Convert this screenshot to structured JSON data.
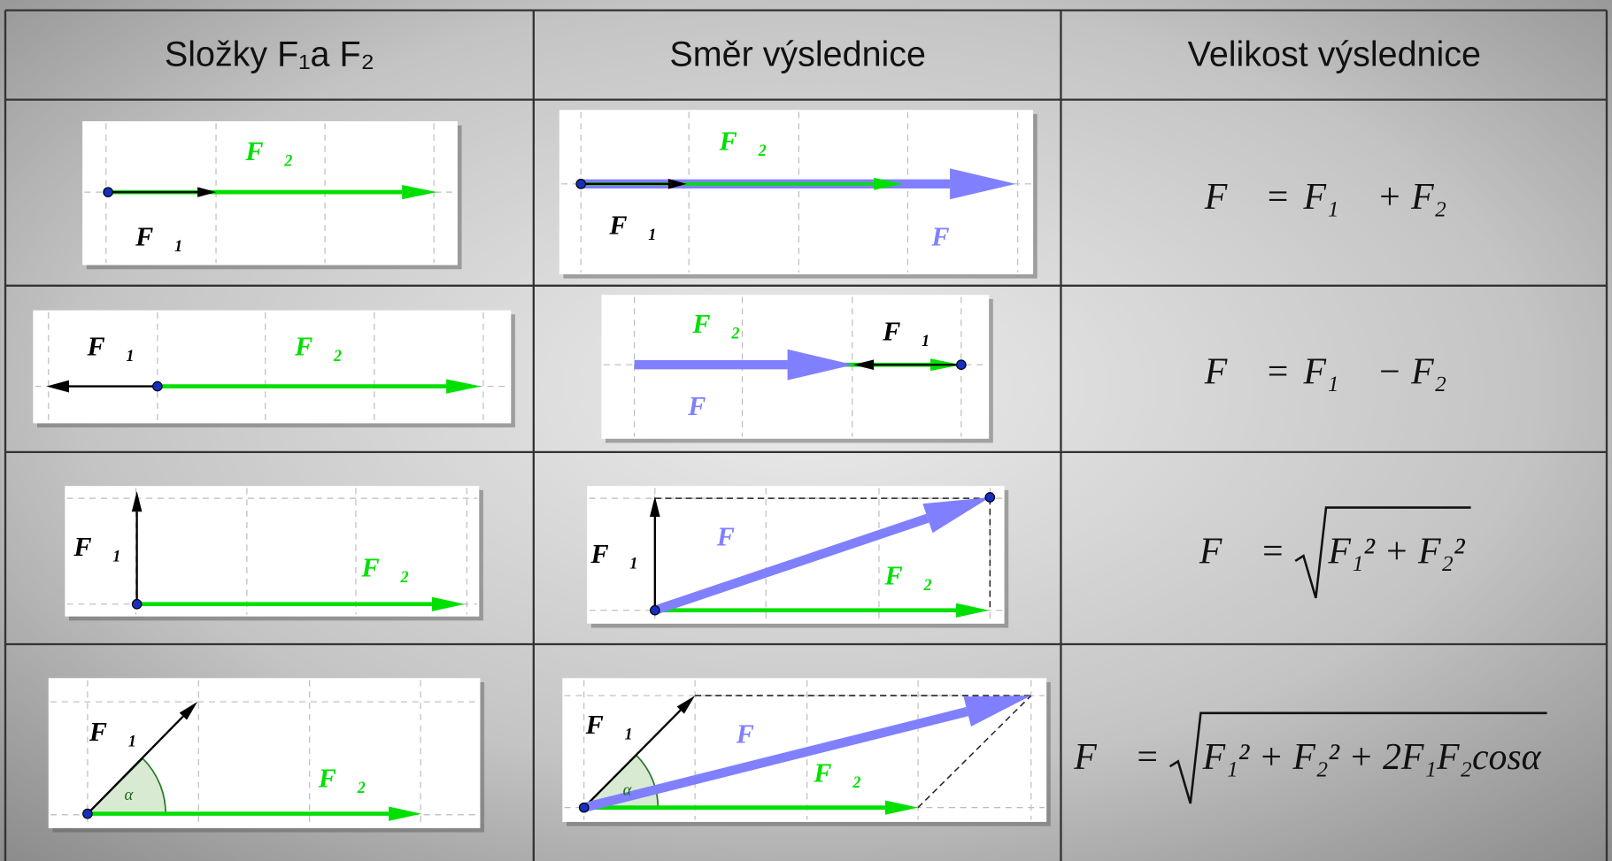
{
  "header": [
    "Složky F₁a F₂",
    "Směr výslednice",
    "Velikost výslednice"
  ],
  "rows": [
    {
      "components": {
        "labels": [
          "F⃗₂",
          "F⃗₁"
        ]
      },
      "direction": {
        "labels": [
          "F⃗₂",
          "F⃗₁",
          "F⃗"
        ]
      },
      "magnitude": {
        "lhs": "F⃗ =",
        "rhs": "F₁⃗ + F₂⃗"
      }
    },
    {
      "components": {
        "labels": [
          "F⃗₁",
          "F⃗₂"
        ]
      },
      "direction": {
        "labels": [
          "F⃗₂",
          "F⃗₁",
          "F⃗"
        ]
      },
      "magnitude": {
        "lhs": "F⃗ =",
        "rhs": "F₁⃗ − F₂⃗"
      }
    },
    {
      "components": {
        "labels": [
          "F⃗₁",
          "F⃗₂"
        ]
      },
      "direction": {
        "labels": [
          "F⃗₁",
          "F⃗",
          "F⃗₂"
        ]
      },
      "magnitude": {
        "lhs": "F⃗ =",
        "radicand": "F₁² + F₂²"
      }
    },
    {
      "components": {
        "labels": [
          "F⃗₁",
          "α",
          "F⃗₂"
        ]
      },
      "direction": {
        "labels": [
          "F⃗₁",
          "α",
          "F⃗",
          "F⃗₂"
        ]
      },
      "magnitude": {
        "lhs": "F⃗ =",
        "radicand": "F₁² + F₂² + 2F₁F₂cosα"
      }
    }
  ]
}
